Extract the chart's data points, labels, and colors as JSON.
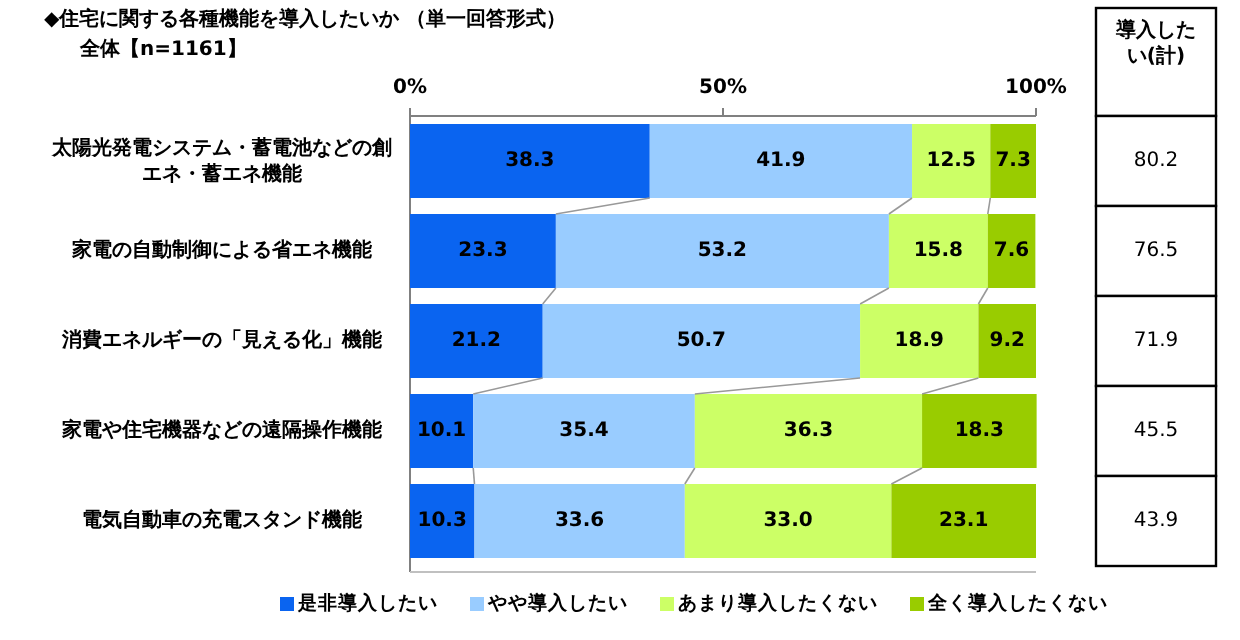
{
  "chart_data": {
    "type": "bar",
    "orientation": "horizontal",
    "stacked": true,
    "title": "◆住宅に関する各種機能を導入したいか （単一回答形式）",
    "subtitle": "全体【n=1161】",
    "categories": [
      "太陽光発電システム・蓄電池などの創エネ・蓄エネ機能",
      "家電の自動制御による省エネ機能",
      "消費エネルギーの「見える化」機能",
      "家電や住宅機器などの遠隔操作機能",
      "電気自動車の充電スタンド機能"
    ],
    "series": [
      {
        "name": "是非導入したい",
        "color": "#0a64f0",
        "values": [
          38.3,
          23.3,
          21.2,
          10.1,
          10.3
        ],
        "value_labels": [
          "38.3",
          "23.3",
          "21.2",
          "10.1",
          "10.3"
        ]
      },
      {
        "name": "やや導入したい",
        "color": "#99ccff",
        "values": [
          41.9,
          53.2,
          50.7,
          35.4,
          33.6
        ],
        "value_labels": [
          "41.9",
          "53.2",
          "50.7",
          "35.4",
          "33.6"
        ]
      },
      {
        "name": "あまり導入したくない",
        "color": "#ccff66",
        "values": [
          12.5,
          15.8,
          18.9,
          36.3,
          33.0
        ],
        "value_labels": [
          "12.5",
          "15.8",
          "18.9",
          "36.3",
          "33.0"
        ]
      },
      {
        "name": "全く導入したくない",
        "color": "#99cc00",
        "values": [
          7.3,
          7.6,
          9.2,
          18.3,
          23.1
        ],
        "value_labels": [
          "7.3",
          "7.6",
          "9.2",
          "18.3",
          "23.1"
        ]
      }
    ],
    "xlim": [
      0,
      100
    ],
    "xticks": [
      {
        "value": 0,
        "label": "0%"
      },
      {
        "value": 50,
        "label": "50%"
      },
      {
        "value": 100,
        "label": "100%"
      }
    ],
    "annotations": [
      "導入したい(計)",
      "80.2",
      "76.5",
      "71.9",
      "45.5",
      "43.9"
    ],
    "legend": "bottom"
  }
}
